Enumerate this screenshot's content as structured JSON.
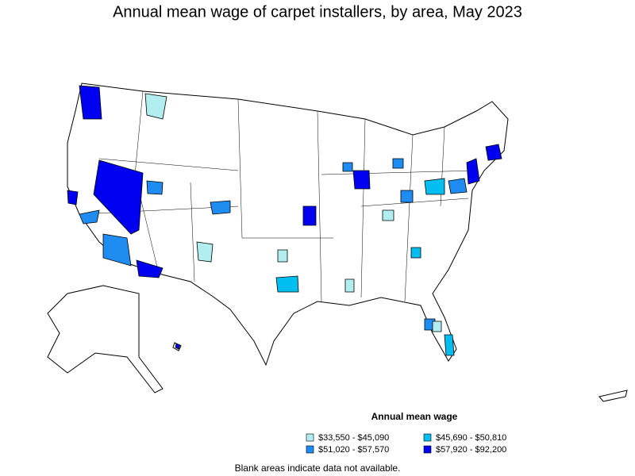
{
  "title": "Annual mean wage of carpet installers, by area, May 2023",
  "legend": {
    "title": "Annual mean wage",
    "items": [
      {
        "label": "$33,550 - $45,090",
        "color": "#b2eef0"
      },
      {
        "label": "$45,690 - $50,810",
        "color": "#00bff0"
      },
      {
        "label": "$51,020 - $57,570",
        "color": "#1e8cf0"
      },
      {
        "label": "$57,920 - $92,200",
        "color": "#0000f0"
      }
    ]
  },
  "note": "Blank areas indicate data not available."
}
